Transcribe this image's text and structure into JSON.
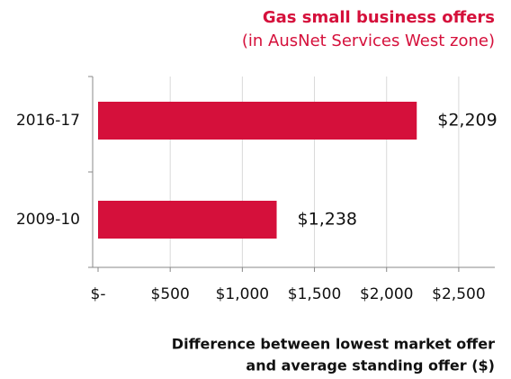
{
  "chart_data": {
    "type": "hbar",
    "title": "Gas small business offers",
    "subtitle": "(in AusNet Services West zone)",
    "x_label": [
      "Difference between lowest market offer",
      "and average standing offer ($)"
    ],
    "categories": [
      "2016-17",
      "2009-10"
    ],
    "values": [
      2209,
      1238
    ],
    "value_labels": [
      "$2,209",
      "$1,238"
    ],
    "color": "#d5103b",
    "xlim": [
      0,
      2750
    ],
    "xticks": [
      {
        "value": 0,
        "label": "$-"
      },
      {
        "value": 500,
        "label": "$500"
      },
      {
        "value": 1000,
        "label": "$1,000"
      },
      {
        "value": 1500,
        "label": "$1,500"
      },
      {
        "value": 2000,
        "label": "$2,000"
      },
      {
        "value": 2500,
        "label": "$2,500"
      }
    ],
    "grid": true
  }
}
